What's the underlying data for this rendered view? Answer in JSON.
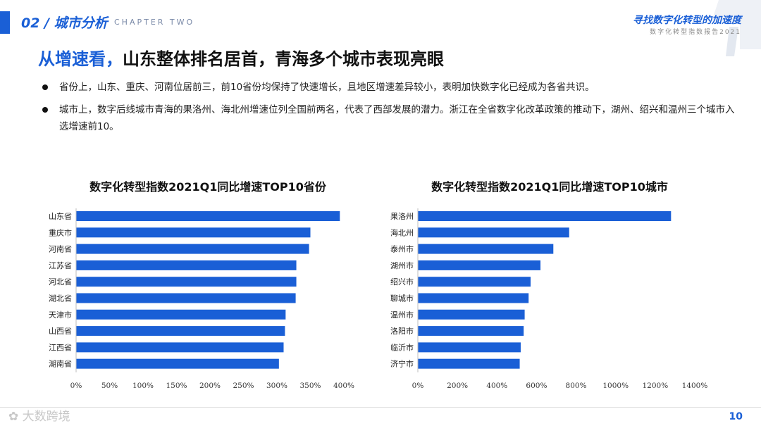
{
  "header": {
    "chapter_title": "02 / 城市分析",
    "chapter_subtitle": "CHAPTER TWO",
    "report_title": "寻找数字化转型的加速度",
    "report_subtitle": "数字化转型指数报告2021"
  },
  "headline": {
    "highlight": "从增速看，",
    "rest": "山东整体排名居首，青海多个城市表现亮眼"
  },
  "bullets": [
    "省份上，山东、重庆、河南位居前三，前10省份均保持了快速增长，且地区增速差异较小，表明加快数字化已经成为各省共识。",
    "城市上，数字后线城市青海的果洛州、海北州增速位列全国前两名，代表了西部发展的潜力。浙江在全省数字化改革政策的推动下，湖州、绍兴和温州三个城市入选增速前10。"
  ],
  "chart_data": [
    {
      "type": "bar",
      "orientation": "horizontal",
      "title": "数字化转型指数2021Q1同比增速TOP10省份",
      "categories": [
        "山东省",
        "重庆市",
        "河南省",
        "江苏省",
        "河北省",
        "湖北省",
        "天津市",
        "山西省",
        "江西省",
        "湖南省"
      ],
      "values": [
        394,
        350,
        348,
        329,
        329,
        328,
        313,
        312,
        310,
        303
      ],
      "unit": "%",
      "xlim": [
        0,
        400
      ],
      "xticks": [
        0,
        50,
        100,
        150,
        200,
        250,
        300,
        350,
        400
      ],
      "xtick_labels": [
        "0%",
        "50%",
        "100%",
        "150%",
        "200%",
        "250%",
        "300%",
        "350%",
        "400%"
      ],
      "bar_color": "#1a5fd6"
    },
    {
      "type": "bar",
      "orientation": "horizontal",
      "title": "数字化转型指数2021Q1同比增速TOP10城市",
      "categories": [
        "果洛州",
        "海北州",
        "泰州市",
        "湖州市",
        "绍兴市",
        "聊城市",
        "温州市",
        "洛阳市",
        "临沂市",
        "济宁市"
      ],
      "values": [
        1280,
        765,
        685,
        620,
        570,
        560,
        540,
        535,
        520,
        515
      ],
      "unit": "%",
      "xlim": [
        0,
        1400
      ],
      "xticks": [
        0,
        200,
        400,
        600,
        800,
        1000,
        1200,
        1400
      ],
      "xtick_labels": [
        "0%",
        "200%",
        "400%",
        "600%",
        "800%",
        "1000%",
        "1200%",
        "1400%"
      ],
      "bar_color": "#1a5fd6"
    }
  ],
  "footer": {
    "watermark": "大数跨境",
    "page_number": "10"
  }
}
